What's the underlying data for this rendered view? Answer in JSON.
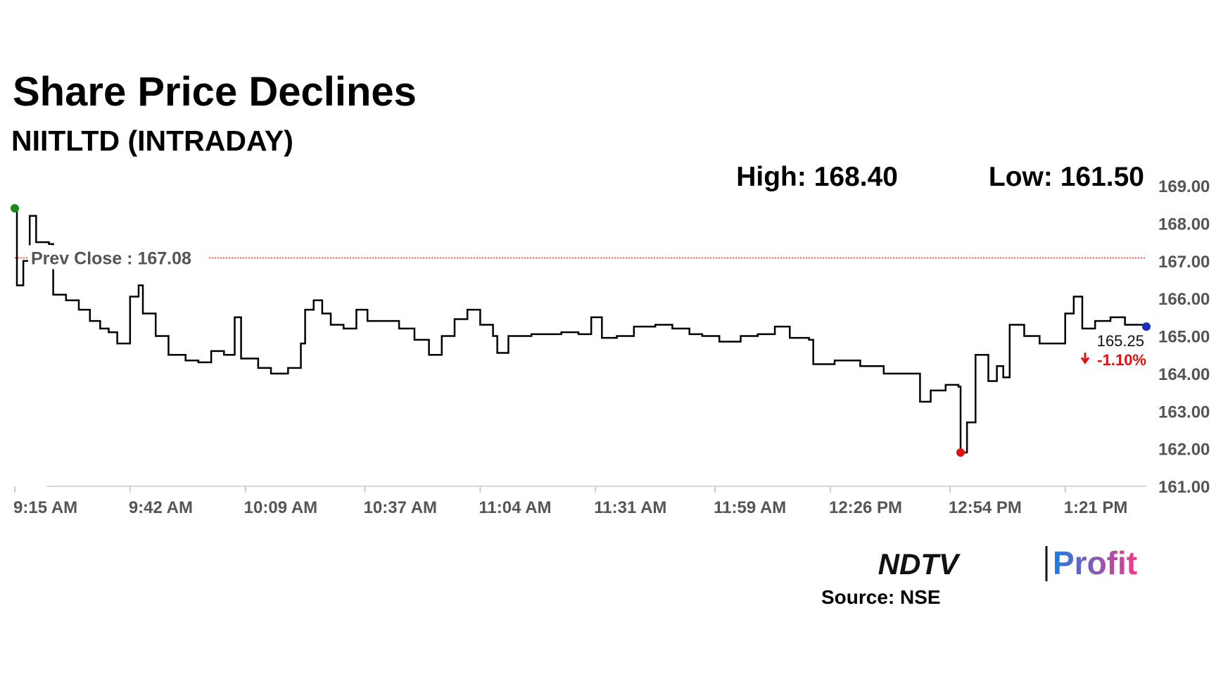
{
  "chart_data": {
    "type": "line",
    "title": "Share Price Declines",
    "subtitle": "NIITLTD (INTRADAY)",
    "high_label": "High: 168.40",
    "low_label": "Low: 161.50",
    "prev_close": {
      "value": 167.08,
      "label": "Prev Close : 167.08"
    },
    "end_label": "165.25",
    "change_label": "-1.10%",
    "source": "Source: NSE",
    "logo": [
      "NDTV",
      "Profit"
    ],
    "color": "#000000",
    "prev_close_color": "#e03030",
    "start_marker_color": "#1a8a1a",
    "low_marker_color": "#e01010",
    "end_marker_color": "#1a2fbf",
    "change_color": "#e01010",
    "x": [
      555,
      555.5,
      557,
      558.5,
      560,
      563,
      564,
      567,
      570,
      572.6,
      575,
      577,
      579,
      582,
      584,
      585,
      588,
      591,
      595,
      598,
      601,
      604,
      606.5,
      608,
      612,
      615,
      619,
      622,
      623,
      625,
      627,
      629,
      632,
      635,
      637.6,
      641,
      645,
      648.6,
      652,
      655,
      658,
      661,
      664,
      667,
      668,
      670.6,
      676,
      683,
      687,
      690,
      692.5,
      696,
      700,
      705,
      709,
      713,
      716,
      720,
      725,
      729,
      733,
      736.5,
      741,
      742,
      747,
      753,
      758.5,
      766,
      767,
      769.5,
      773,
      776,
      776.5,
      778,
      780,
      783,
      785,
      786.5,
      788,
      791.4,
      795,
      798.8,
      801,
      803,
      805,
      808,
      811.6,
      815,
      820
    ],
    "values": [
      168.4,
      166.35,
      167.0,
      168.2,
      167.5,
      167.45,
      166.1,
      165.95,
      165.7,
      165.4,
      165.2,
      165.1,
      164.8,
      166.05,
      166.35,
      165.6,
      165.0,
      164.5,
      164.35,
      164.3,
      164.6,
      164.5,
      165.5,
      164.4,
      164.15,
      164.0,
      164.15,
      164.8,
      165.7,
      165.95,
      165.6,
      165.3,
      165.2,
      165.7,
      165.4,
      165.4,
      165.2,
      164.9,
      164.5,
      165.0,
      165.45,
      165.7,
      165.3,
      165.0,
      164.55,
      165.0,
      165.05,
      165.1,
      165.05,
      165.5,
      164.95,
      165.0,
      165.25,
      165.3,
      165.2,
      165.05,
      165.0,
      164.85,
      165.0,
      165.05,
      165.25,
      164.95,
      164.9,
      164.25,
      164.35,
      164.2,
      164.0,
      164.0,
      163.25,
      163.55,
      163.7,
      163.65,
      161.9,
      162.7,
      164.5,
      163.8,
      164.2,
      163.9,
      165.3,
      165.0,
      164.8,
      164.8,
      165.6,
      166.05,
      165.2,
      165.4,
      165.5,
      165.3,
      165.25
    ],
    "xlim": [
      555,
      820
    ],
    "xticks": [
      {
        "value": 555,
        "label": "9:15 AM"
      },
      {
        "value": 582,
        "label": "9:42 AM"
      },
      {
        "value": 609,
        "label": "10:09 AM"
      },
      {
        "value": 637,
        "label": "10:37 AM"
      },
      {
        "value": 664,
        "label": "11:04 AM"
      },
      {
        "value": 691,
        "label": "11:31 AM"
      },
      {
        "value": 719,
        "label": "11:59 AM"
      },
      {
        "value": 746,
        "label": "12:26 PM"
      },
      {
        "value": 774,
        "label": "12:54 PM"
      },
      {
        "value": 801,
        "label": "1:21 PM"
      }
    ],
    "ylim": [
      161,
      169
    ],
    "yticks": [
      {
        "value": 161,
        "label": "161.00"
      },
      {
        "value": 162,
        "label": "162.00"
      },
      {
        "value": 163,
        "label": "163.00"
      },
      {
        "value": 164,
        "label": "164.00"
      },
      {
        "value": 165,
        "label": "165.00"
      },
      {
        "value": 166,
        "label": "166.00"
      },
      {
        "value": 167,
        "label": "167.00"
      },
      {
        "value": 168,
        "label": "168.00"
      },
      {
        "value": 169,
        "label": "169.00"
      }
    ]
  }
}
